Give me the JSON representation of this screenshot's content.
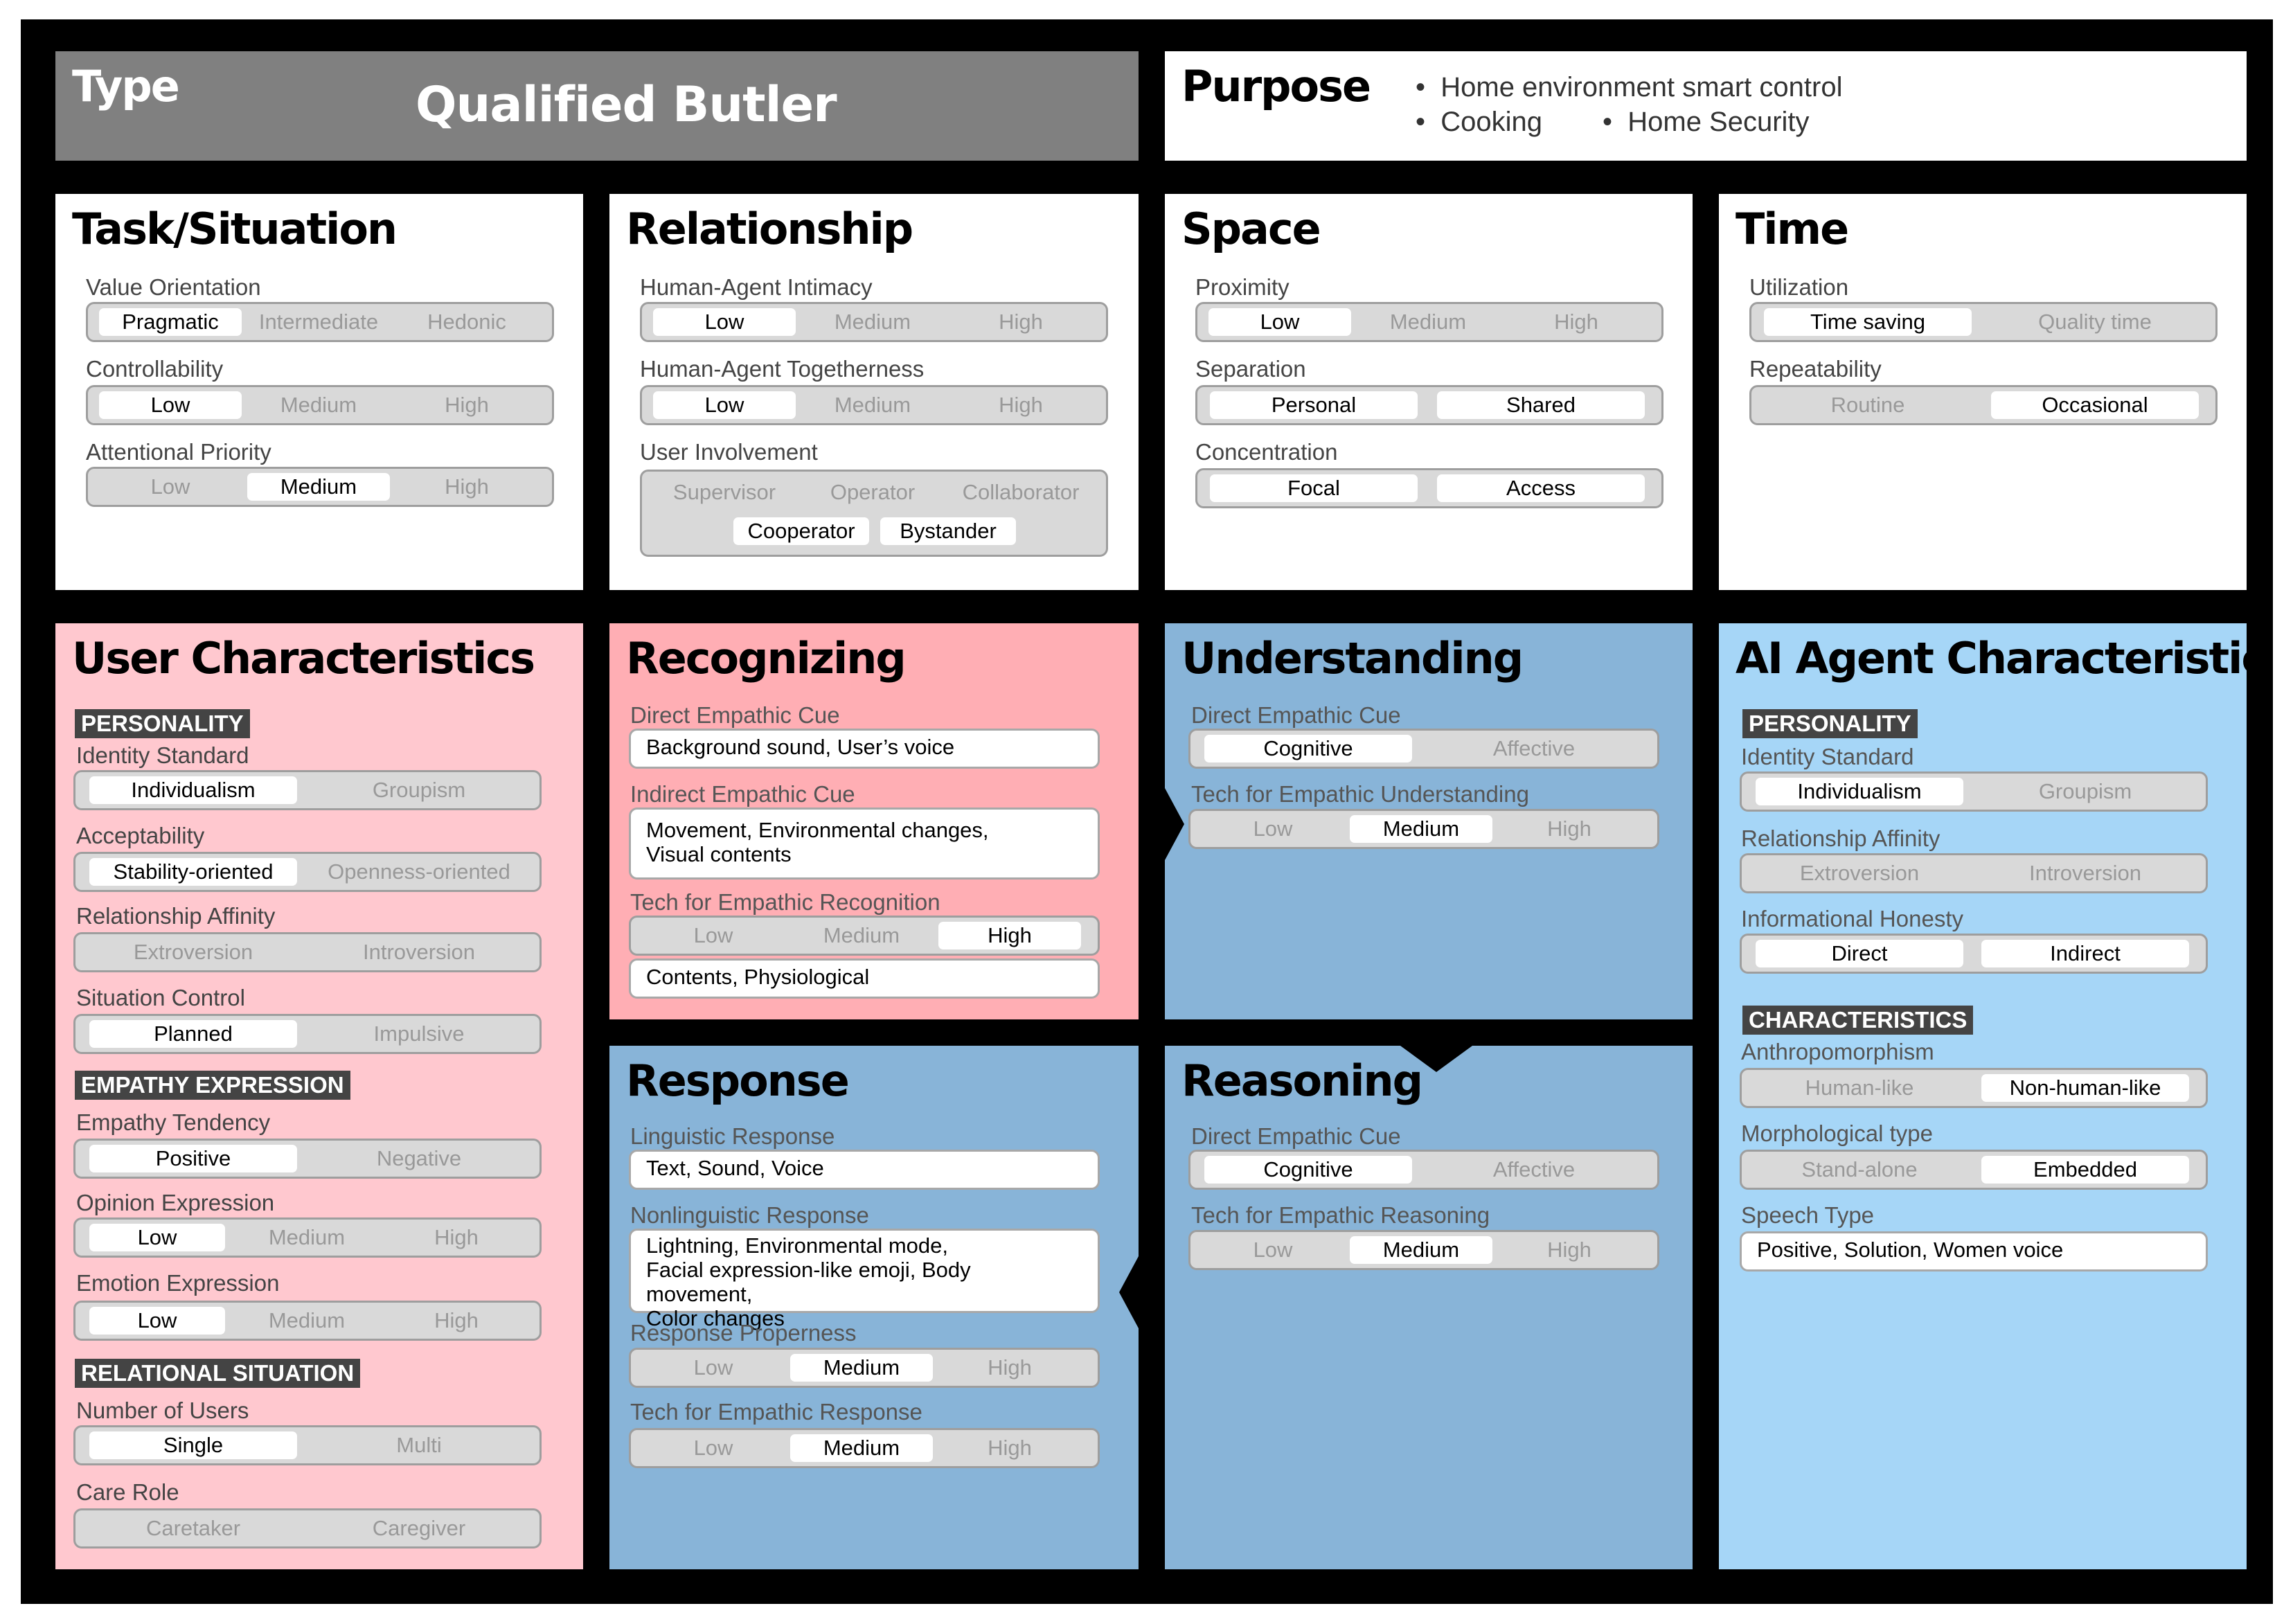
{
  "type_bar": {
    "label": "Type",
    "value": "Qualified Butler"
  },
  "purpose": {
    "label": "Purpose",
    "items": [
      "Home environment smart control",
      "Cooking",
      "Home Security"
    ]
  },
  "colors": {
    "user_characteristics": "#ffc8cf",
    "recognizing": "#ffaeb4",
    "understanding": "#88b4d8",
    "response": "#88b4d8",
    "reasoning": "#88b4d8",
    "ai_agent": "#a6d6f7",
    "type_bar": "#808080",
    "frame": "#000000"
  },
  "task": {
    "title": "Task/Situation",
    "value_orientation": {
      "label": "Value Orientation",
      "options": [
        "Pragmatic",
        "Intermediate",
        "Hedonic"
      ]
    },
    "controllability": {
      "label": "Controllability",
      "options": [
        "Low",
        "Medium",
        "High"
      ]
    },
    "attentional_priority": {
      "label": "Attentional Priority",
      "options": [
        "Low",
        "Medium",
        "High"
      ]
    }
  },
  "relationship": {
    "title": "Relationship",
    "intimacy": {
      "label": "Human-Agent Intimacy",
      "options": [
        "Low",
        "Medium",
        "High"
      ]
    },
    "togetherness": {
      "label": "Human-Agent Togetherness",
      "options": [
        "Low",
        "Medium",
        "High"
      ]
    },
    "involvement": {
      "label": "User Involvement",
      "options": [
        "Supervisor",
        "Operator",
        "Collaborator",
        "Cooperator",
        "Bystander"
      ]
    }
  },
  "space": {
    "title": "Space",
    "proximity": {
      "label": "Proximity",
      "options": [
        "Low",
        "Medium",
        "High"
      ]
    },
    "separation": {
      "label": "Separation",
      "options": [
        "Personal",
        "Shared"
      ]
    },
    "concentration": {
      "label": "Concentration",
      "options": [
        "Focal",
        "Access"
      ]
    }
  },
  "time": {
    "title": "Time",
    "utilization": {
      "label": "Utilization",
      "options": [
        "Time saving",
        "Quality time"
      ]
    },
    "repeatability": {
      "label": "Repeatability",
      "options": [
        "Routine",
        "Occasional"
      ]
    }
  },
  "user": {
    "title": "User Characteristics",
    "personality_header": "PERSONALITY",
    "identity": {
      "label": "Identity Standard",
      "options": [
        "Individualism",
        "Groupism"
      ]
    },
    "acceptability": {
      "label": "Acceptability",
      "options": [
        "Stability-oriented",
        "Openness-oriented"
      ]
    },
    "affinity": {
      "label": "Relationship Affinity",
      "options": [
        "Extroversion",
        "Introversion"
      ]
    },
    "situation_control": {
      "label": "Situation Control",
      "options": [
        "Planned",
        "Impulsive"
      ]
    },
    "empathy_header": "EMPATHY EXPRESSION",
    "empathy_tendency": {
      "label": "Empathy Tendency",
      "options": [
        "Positive",
        "Negative"
      ]
    },
    "opinion": {
      "label": "Opinion Expression",
      "options": [
        "Low",
        "Medium",
        "High"
      ]
    },
    "emotion": {
      "label": "Emotion Expression",
      "options": [
        "Low",
        "Medium",
        "High"
      ]
    },
    "relational_header": "RELATIONAL SITUATION",
    "num_users": {
      "label": "Number of Users",
      "options": [
        "Single",
        "Multi"
      ]
    },
    "care_role": {
      "label": "Care Role",
      "options": [
        "Caretaker",
        "Caregiver"
      ]
    }
  },
  "recognizing": {
    "title": "Recognizing",
    "direct_label": "Direct Empathic Cue",
    "direct_value": "Background sound, User’s voice",
    "indirect_label": "Indirect Empathic Cue",
    "indirect_value": "Movement, Environmental changes,\nVisual contents",
    "tech_label": "Tech for Empathic Recognition",
    "tech_options": [
      "Low",
      "Medium",
      "High"
    ],
    "tech_value": "Contents, Physiological"
  },
  "understanding": {
    "title": "Understanding",
    "direct": {
      "label": "Direct Empathic Cue",
      "options": [
        "Cognitive",
        "Affective"
      ]
    },
    "tech": {
      "label": "Tech for Empathic Understanding",
      "options": [
        "Low",
        "Medium",
        "High"
      ]
    }
  },
  "response": {
    "title": "Response",
    "linguistic_label": "Linguistic Response",
    "linguistic_value": "Text, Sound, Voice",
    "nonlinguistic_label": "Nonlinguistic Response",
    "nonlinguistic_value": "Lightning, Environmental mode,\nFacial expression-like emoji, Body movement,\nColor changes",
    "properness": {
      "label": "Response Properness",
      "options": [
        "Low",
        "Medium",
        "High"
      ]
    },
    "tech": {
      "label": "Tech for Empathic Response",
      "options": [
        "Low",
        "Medium",
        "High"
      ]
    }
  },
  "reasoning": {
    "title": "Reasoning",
    "direct": {
      "label": "Direct Empathic Cue",
      "options": [
        "Cognitive",
        "Affective"
      ]
    },
    "tech": {
      "label": "Tech for Empathic Reasoning",
      "options": [
        "Low",
        "Medium",
        "High"
      ]
    }
  },
  "agent": {
    "title": "AI Agent Characteristics",
    "personality_header": "PERSONALITY",
    "identity": {
      "label": "Identity Standard",
      "options": [
        "Individualism",
        "Groupism"
      ]
    },
    "affinity": {
      "label": "Relationship Affinity",
      "options": [
        "Extroversion",
        "Introversion"
      ]
    },
    "honesty": {
      "label": "Informational Honesty",
      "options": [
        "Direct",
        "Indirect"
      ]
    },
    "characteristics_header": "CHARACTERISTICS",
    "anthropomorphism": {
      "label": "Anthropomorphism",
      "options": [
        "Human-like",
        "Non-human-like"
      ]
    },
    "morphology": {
      "label": "Morphological type",
      "options": [
        "Stand-alone",
        "Embedded"
      ]
    },
    "speech_label": "Speech Type",
    "speech_value": "Positive, Solution, Women voice"
  }
}
